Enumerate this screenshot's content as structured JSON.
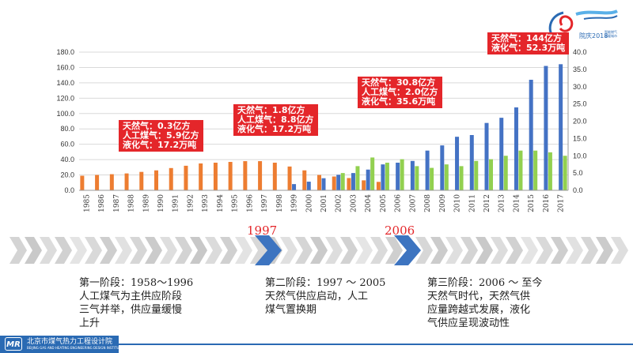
{
  "chart_data": {
    "type": "bar",
    "categories": [
      "1985",
      "1986",
      "1987",
      "1988",
      "1989",
      "1990",
      "1991",
      "1992",
      "1993",
      "1994",
      "1995",
      "1996",
      "1997",
      "1998",
      "1999",
      "2000",
      "2001",
      "2002",
      "2003",
      "2004",
      "2005",
      "2006",
      "2007",
      "2008",
      "2009",
      "2010",
      "2011",
      "2012",
      "2013",
      "2014",
      "2015",
      "2016",
      "2017"
    ],
    "y_left": {
      "ylim": [
        0,
        180
      ],
      "ticks": [
        "0.0",
        "20.0",
        "40.0",
        "60.0",
        "80.0",
        "100.0",
        "120.0",
        "140.0",
        "160.0",
        "180.0"
      ]
    },
    "y_right": {
      "ylim": [
        0,
        40
      ],
      "ticks": [
        "0.0",
        "5.0",
        "10.0",
        "15.0",
        "20.0",
        "25.0",
        "30.0",
        "35.0",
        "40.0"
      ]
    },
    "series": [
      {
        "color": "#ed7d31",
        "axis": "left",
        "values": [
          19,
          20,
          21,
          22,
          24,
          26,
          29,
          32,
          35,
          36,
          37,
          38,
          38,
          36,
          31,
          26,
          20,
          18,
          16,
          13,
          11,
          0,
          0,
          0,
          0,
          0,
          0,
          0,
          0,
          0,
          0,
          0,
          0
        ]
      },
      {
        "color": "#4472c4",
        "axis": "right",
        "values": [
          0,
          0,
          0,
          0,
          0,
          0,
          0,
          0,
          0,
          0,
          0,
          0,
          0,
          0,
          1.8,
          2.5,
          3.5,
          4.5,
          5,
          6,
          7.5,
          8,
          8.5,
          11.5,
          13,
          15.5,
          16,
          19.5,
          21,
          24,
          32,
          36,
          36.5
        ]
      },
      {
        "color": "#92d050",
        "axis": "right",
        "values": [
          0,
          0,
          0,
          0,
          0,
          0,
          0,
          0,
          0,
          0,
          0,
          0,
          0,
          0,
          0,
          0,
          0,
          5,
          7,
          9.5,
          8,
          9,
          7,
          6.5,
          7.5,
          7,
          8.5,
          9,
          10,
          11.5,
          11.5,
          11,
          10
        ]
      }
    ]
  },
  "callouts": [
    {
      "lines": [
        "天然气：0.3亿方",
        "人工煤气：5.9亿方",
        "液化气：17.2万吨"
      ]
    },
    {
      "lines": [
        "天然气：1.8亿方",
        "人工煤气：8.8亿方",
        "液化气：17.2万吨"
      ]
    },
    {
      "lines": [
        "天然气：30.8亿方",
        "人工煤气：2.0亿方",
        "液化气：35.6万吨"
      ]
    },
    {
      "lines": [
        "天然气：144亿方",
        "液化气：52.3万吨"
      ]
    }
  ],
  "timeline": {
    "year1": "1997",
    "year2": "2006"
  },
  "stages": [
    {
      "lines": [
        "第一阶段：1958～1996",
        "人工煤气为主供应阶段",
        "三气并举，供应量缓慢",
        "上升"
      ]
    },
    {
      "lines": [
        "第二阶段：1997 ～ 2005",
        "天然气供应启动，人工",
        "煤气置换期"
      ]
    },
    {
      "lines": [
        "第三阶段：2006 ～ 至今",
        "天然气时代，天然气供",
        "应量跨越式发展，液化",
        "气供应呈现波动性"
      ]
    }
  ],
  "footer": {
    "logo": "MR",
    "org": "北京市煤气热力工程设计院",
    "org_en": "BEIJING GAS AND HEATING ENGINEERING DESIGN INSTITUTE"
  },
  "logo": {
    "year": "2018",
    "number": "60",
    "caption1": "院庆",
    "caption2": "智能燃气",
    "caption3": "温暖城市"
  },
  "colors": {
    "accent_red": "#e4262a",
    "brand_blue": "#2a6ab3",
    "arrow_blue": "#3d74c0"
  }
}
